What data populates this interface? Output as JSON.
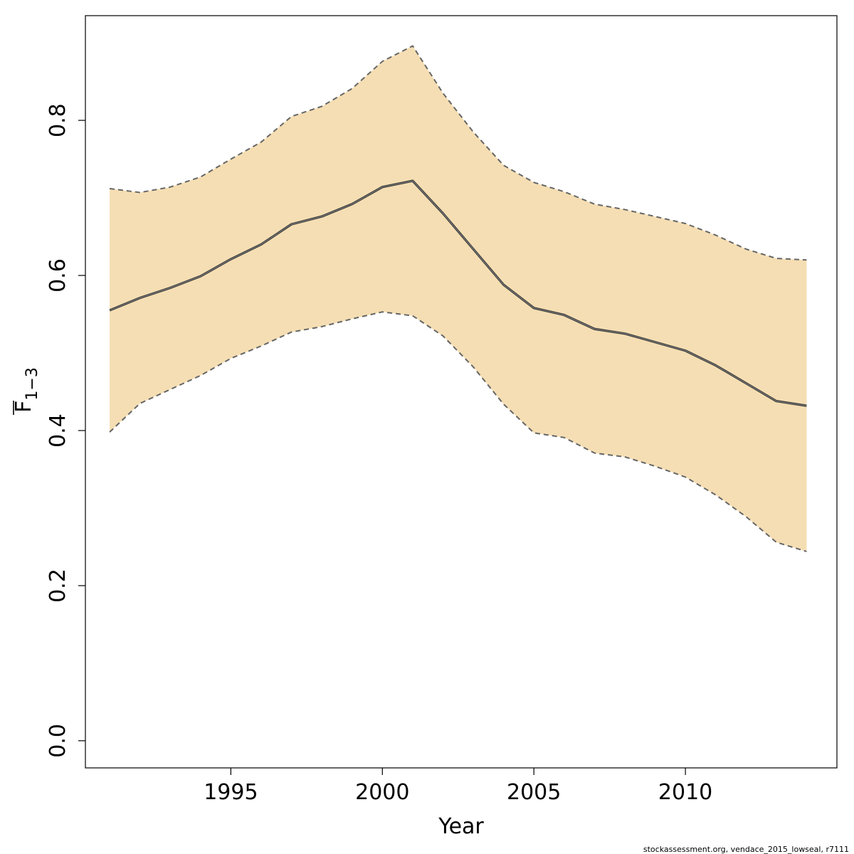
{
  "chart_data": {
    "type": "line",
    "xlabel": "Year",
    "ylabel": {
      "base": "F",
      "subscript": "1−3"
    },
    "xlim": [
      1990.2,
      2015.0
    ],
    "ylim": [
      -0.035,
      0.935
    ],
    "x_ticks": [
      1995,
      2000,
      2005,
      2010
    ],
    "y_ticks": [
      0.0,
      0.2,
      0.4,
      0.6,
      0.8
    ],
    "y_tick_labels": [
      "0.0",
      "0.2",
      "0.4",
      "0.6",
      "0.8"
    ],
    "grid": false,
    "band_color": "#F5DEB3",
    "line_color": "#333333",
    "bound_color": "#666666",
    "x": [
      1991,
      1992,
      1993,
      1994,
      1995,
      1996,
      1997,
      1998,
      1999,
      2000,
      2001,
      2002,
      2003,
      2004,
      2005,
      2006,
      2007,
      2008,
      2009,
      2010,
      2011,
      2012,
      2013,
      2014
    ],
    "series": [
      {
        "role": "estimate",
        "values": [
          0.555,
          0.571,
          0.584,
          0.599,
          0.621,
          0.64,
          0.666,
          0.676,
          0.692,
          0.714,
          0.722,
          0.68,
          0.634,
          0.588,
          0.558,
          0.549,
          0.531,
          0.525,
          0.514,
          0.503,
          0.484,
          0.461,
          0.438,
          0.432
        ]
      },
      {
        "role": "upper",
        "values": [
          0.712,
          0.707,
          0.714,
          0.727,
          0.75,
          0.772,
          0.805,
          0.818,
          0.841,
          0.876,
          0.896,
          0.835,
          0.785,
          0.742,
          0.72,
          0.708,
          0.692,
          0.685,
          0.676,
          0.667,
          0.652,
          0.634,
          0.622,
          0.62
        ]
      },
      {
        "role": "lower",
        "values": [
          0.398,
          0.435,
          0.453,
          0.471,
          0.493,
          0.509,
          0.527,
          0.534,
          0.544,
          0.553,
          0.548,
          0.522,
          0.482,
          0.434,
          0.397,
          0.391,
          0.371,
          0.366,
          0.354,
          0.34,
          0.317,
          0.289,
          0.256,
          0.244
        ]
      }
    ]
  },
  "footer": "stockassessment.org, vendace_2015_lowseal, r7111"
}
